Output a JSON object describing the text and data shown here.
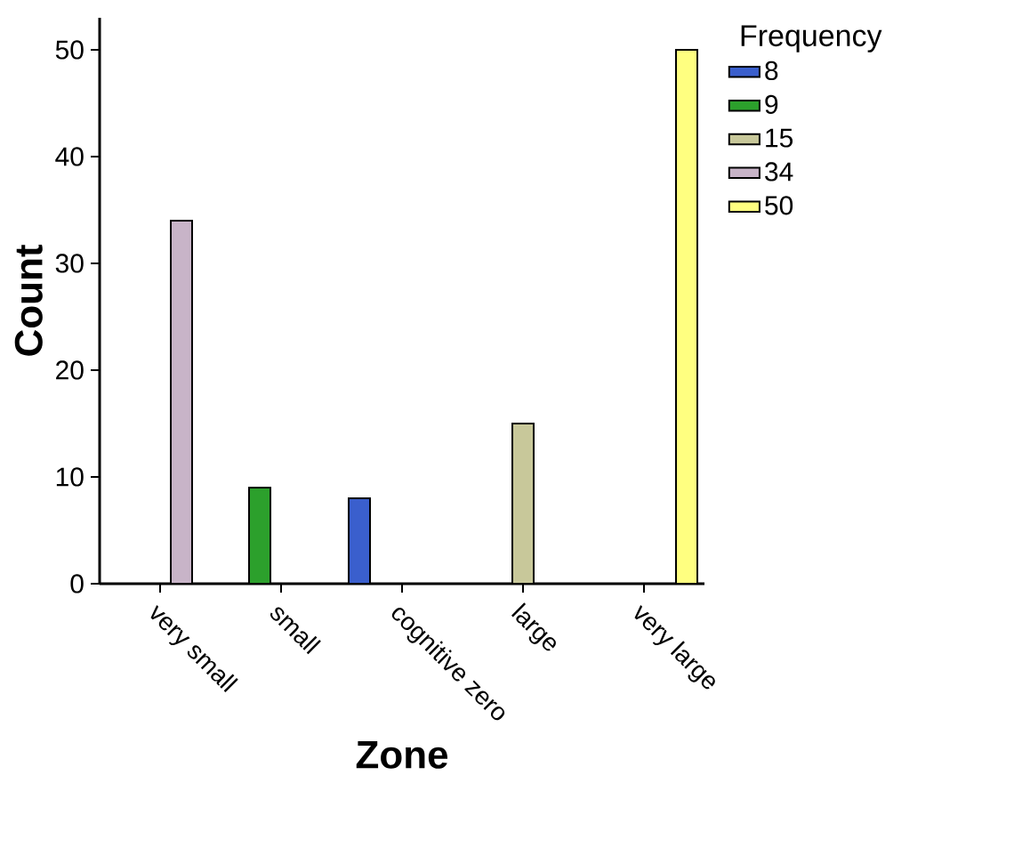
{
  "chart_data": {
    "type": "bar",
    "xlabel": "Zone",
    "ylabel": "Count",
    "legend_title": "Frequency",
    "legend": "top right",
    "categories": [
      "very small",
      "small",
      "cognitive zero",
      "large",
      "very large"
    ],
    "series": [
      {
        "name": "8",
        "color": "#3a5fcd",
        "values": [
          null,
          null,
          8,
          null,
          null
        ]
      },
      {
        "name": "9",
        "color": "#2ca02c",
        "values": [
          null,
          9,
          null,
          null,
          null
        ]
      },
      {
        "name": "15",
        "color": "#c8c89a",
        "values": [
          null,
          null,
          null,
          15,
          null
        ]
      },
      {
        "name": "34",
        "color": "#c8b4c8",
        "values": [
          34,
          null,
          null,
          null,
          null
        ]
      },
      {
        "name": "50",
        "color": "#ffff80",
        "values": [
          null,
          null,
          null,
          null,
          50
        ]
      }
    ],
    "ylim": [
      0,
      53
    ],
    "yticks": [
      0,
      10,
      20,
      30,
      40,
      50
    ],
    "grid": false
  }
}
